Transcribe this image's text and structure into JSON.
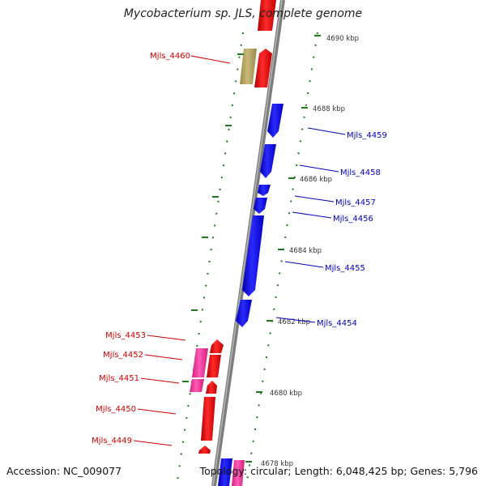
{
  "title": "Mycobacterium sp. JLS, complete genome",
  "accession": "Accession: NC_009077",
  "topology": "Topology: circular; Length: 6,048,425 bp; Genes: 5,796",
  "colors": {
    "backbone": "#8a8a8a",
    "forward_gene": "#ff0000",
    "reverse_gene": "#0000ff",
    "pink_gene": "#ff3ea5",
    "olive_gene": "#b9a865",
    "tick": "#1f7a1f",
    "label_red": "#cc0000",
    "label_blue": "#0000bb"
  },
  "scale_labels": [
    "4690 kbp",
    "4688 kbp",
    "4686 kbp",
    "4684 kbp",
    "4682 kbp",
    "4680 kbp",
    "4678 kbp"
  ],
  "left_labels": [
    "Mjls_4460",
    "Mjls_4453",
    "Mjls_4452",
    "Mjls_4451",
    "Mjls_4450",
    "Mjls_4449"
  ],
  "right_labels": [
    "Mjls_4459",
    "Mjls_4458",
    "Mjls_4457",
    "Mjls_4456",
    "Mjls_4455",
    "Mjls_4454"
  ]
}
